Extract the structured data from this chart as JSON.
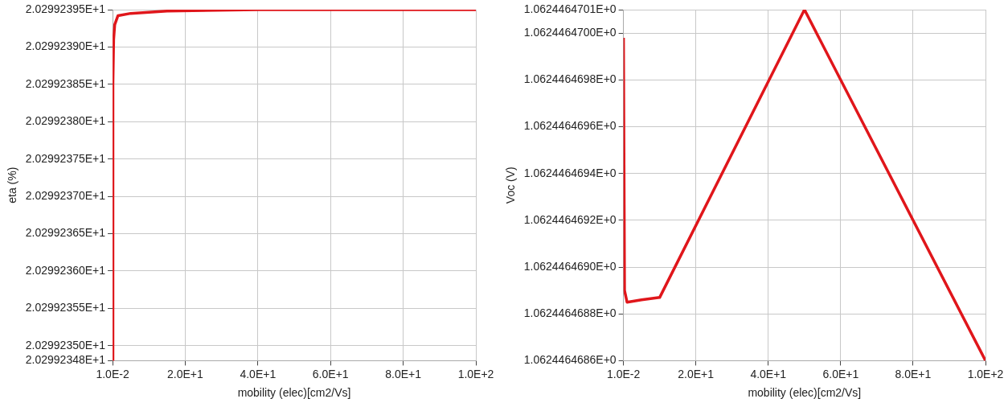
{
  "chart_data": [
    {
      "type": "line",
      "xlabel": "mobility (elec)[cm2/Vs]",
      "ylabel": "eta (%)",
      "grid": true,
      "legend": false,
      "marker": "none",
      "line_style": "solid",
      "xlim": [
        0.01,
        100
      ],
      "xticks": [
        {
          "value": 0.01,
          "label": "1.0E-2"
        },
        {
          "value": 20,
          "label": "2.0E+1"
        },
        {
          "value": 40,
          "label": "4.0E+1"
        },
        {
          "value": 60,
          "label": "6.0E+1"
        },
        {
          "value": 80,
          "label": "8.0E+1"
        },
        {
          "value": 100,
          "label": "1.0E+2"
        }
      ],
      "ylim": [
        20.2992348,
        20.2992395
      ],
      "yticks": [
        {
          "value": 20.2992348,
          "label": "2.02992348E+1"
        },
        {
          "value": 20.299235,
          "label": "2.02992350E+1"
        },
        {
          "value": 20.2992355,
          "label": "2.02992355E+1"
        },
        {
          "value": 20.299236,
          "label": "2.02992360E+1"
        },
        {
          "value": 20.2992365,
          "label": "2.02992365E+1"
        },
        {
          "value": 20.299237,
          "label": "2.02992370E+1"
        },
        {
          "value": 20.2992375,
          "label": "2.02992375E+1"
        },
        {
          "value": 20.299238,
          "label": "2.02992380E+1"
        },
        {
          "value": 20.2992385,
          "label": "2.02992385E+1"
        },
        {
          "value": 20.299239,
          "label": "2.02992390E+1"
        },
        {
          "value": 20.2992395,
          "label": "2.02992395E+1"
        }
      ],
      "x": [
        0.01,
        0.1,
        0.3,
        0.6,
        1.5,
        5,
        15,
        40,
        100
      ],
      "series": [
        {
          "color": "#e0161b",
          "values": [
            20.2992348,
            20.2992385,
            20.2992391,
            20.2992393,
            20.29923942,
            20.29923945,
            20.29923948,
            20.2992395,
            20.2992395
          ]
        }
      ]
    },
    {
      "type": "line",
      "xlabel": "mobility (elec)[cm2/Vs]",
      "ylabel": "Voc (V)",
      "grid": true,
      "legend": false,
      "marker": "none",
      "line_style": "solid",
      "xlim": [
        0.01,
        100
      ],
      "xticks": [
        {
          "value": 0.01,
          "label": "1.0E-2"
        },
        {
          "value": 20,
          "label": "2.0E+1"
        },
        {
          "value": 40,
          "label": "4.0E+1"
        },
        {
          "value": 60,
          "label": "6.0E+1"
        },
        {
          "value": 80,
          "label": "8.0E+1"
        },
        {
          "value": 100,
          "label": "1.0E+2"
        }
      ],
      "ylim": [
        1.0624464686,
        1.0624464701
      ],
      "yticks": [
        {
          "value": 1.0624464686,
          "label": "1.0624464686E+0"
        },
        {
          "value": 1.0624464688,
          "label": "1.0624464688E+0"
        },
        {
          "value": 1.062446469,
          "label": "1.0624464690E+0"
        },
        {
          "value": 1.0624464692,
          "label": "1.0624464692E+0"
        },
        {
          "value": 1.0624464694,
          "label": "1.0624464694E+0"
        },
        {
          "value": 1.0624464696,
          "label": "1.0624464696E+0"
        },
        {
          "value": 1.0624464698,
          "label": "1.0624464698E+0"
        },
        {
          "value": 1.06244647,
          "label": "1.0624464700E+0"
        },
        {
          "value": 1.0624464701,
          "label": "1.0624464701E+0"
        }
      ],
      "x": [
        0.01,
        0.3,
        1,
        5,
        10,
        50,
        100
      ],
      "series": [
        {
          "color": "#e0161b",
          "values": [
            1.06244646998,
            1.0624464689,
            1.06244646885,
            1.06244646886,
            1.06244646887,
            1.0624464701,
            1.0624464686
          ]
        }
      ]
    }
  ]
}
